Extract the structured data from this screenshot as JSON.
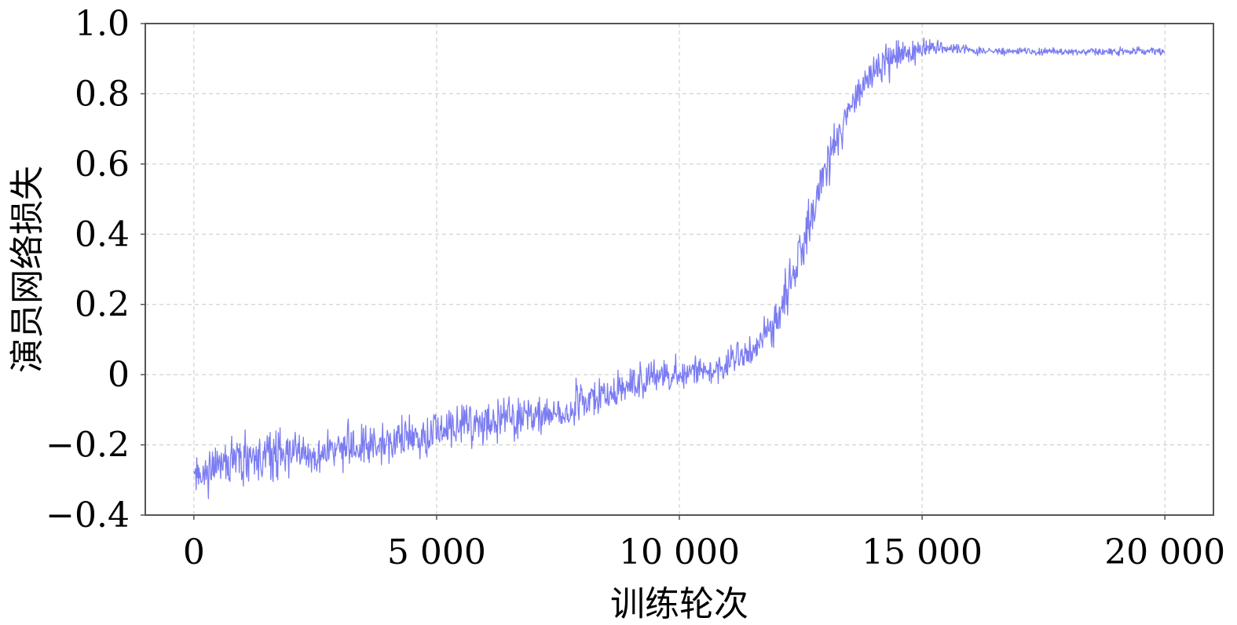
{
  "chart_data": {
    "type": "line",
    "title": "",
    "xlabel": "训练轮次",
    "ylabel": "演员网络损失",
    "xlim": [
      -1000,
      21000
    ],
    "ylim": [
      -0.4,
      1.0
    ],
    "grid": true,
    "x_ticks": [
      {
        "value": 0,
        "label": "0"
      },
      {
        "value": 5000,
        "label": "5 000"
      },
      {
        "value": 10000,
        "label": "10 000"
      },
      {
        "value": 15000,
        "label": "15 000"
      },
      {
        "value": 20000,
        "label": "20 000"
      }
    ],
    "y_ticks": [
      {
        "value": -0.4,
        "label": "−0.4"
      },
      {
        "value": -0.2,
        "label": "−0.2"
      },
      {
        "value": 0,
        "label": "0"
      },
      {
        "value": 0.2,
        "label": "0.2"
      },
      {
        "value": 0.4,
        "label": "0.4"
      },
      {
        "value": 0.6,
        "label": "0.6"
      },
      {
        "value": 0.8,
        "label": "0.8"
      },
      {
        "value": 1.0,
        "label": "1.0"
      }
    ],
    "series": [
      {
        "color": "#7b7cf2",
        "x": [
          0,
          500,
          1000,
          1500,
          2000,
          2500,
          3000,
          3500,
          4000,
          4500,
          5000,
          5500,
          6000,
          6500,
          7000,
          7500,
          8000,
          8500,
          9000,
          9500,
          10000,
          10500,
          11000,
          11500,
          12000,
          12500,
          13000,
          13500,
          14000,
          14500,
          15000,
          15500,
          16000,
          16500,
          17000,
          17500,
          18000,
          18500,
          19000,
          19500,
          20000
        ],
        "y": [
          -0.3,
          -0.26,
          -0.25,
          -0.23,
          -0.22,
          -0.22,
          -0.21,
          -0.2,
          -0.19,
          -0.18,
          -0.16,
          -0.15,
          -0.14,
          -0.13,
          -0.12,
          -0.1,
          -0.08,
          -0.06,
          -0.03,
          -0.01,
          0.0,
          0.01,
          0.03,
          0.07,
          0.16,
          0.34,
          0.59,
          0.76,
          0.87,
          0.91,
          0.93,
          0.93,
          0.925,
          0.92,
          0.92,
          0.92,
          0.92,
          0.92,
          0.92,
          0.92,
          0.92
        ],
        "noise": [
          0.04,
          0.04,
          0.05,
          0.05,
          0.05,
          0.04,
          0.04,
          0.04,
          0.04,
          0.04,
          0.04,
          0.04,
          0.04,
          0.04,
          0.04,
          0.04,
          0.04,
          0.035,
          0.035,
          0.035,
          0.03,
          0.03,
          0.03,
          0.035,
          0.04,
          0.05,
          0.05,
          0.04,
          0.035,
          0.03,
          0.025,
          0.012,
          0.008,
          0.008,
          0.008,
          0.008,
          0.008,
          0.008,
          0.008,
          0.008,
          0.008
        ]
      }
    ]
  }
}
